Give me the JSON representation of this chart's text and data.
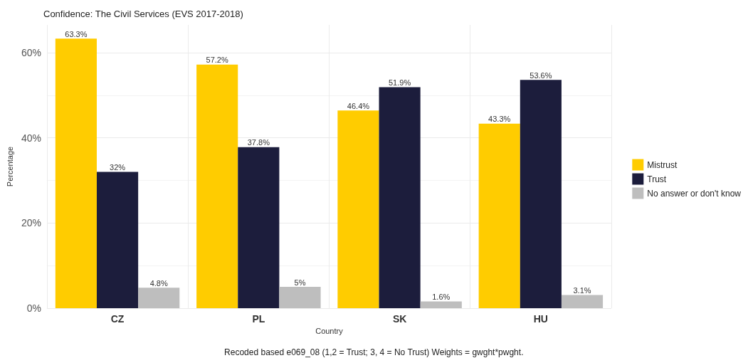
{
  "chart_data": {
    "type": "bar",
    "title": "Confidence: The Civil Services (EVS 2017-2018)",
    "xlabel": "Country",
    "ylabel": "Percentage",
    "annotations": [
      "Recoded based e069_08 (1,2 = Trust; 3, 4 = No Trust) Weights = gwght*pwght."
    ],
    "categories": [
      "CZ",
      "PL",
      "SK",
      "HU"
    ],
    "series": [
      {
        "name": "Mistrust",
        "color": "#ffcc00",
        "values": [
          63.3,
          57.2,
          46.4,
          43.3
        ],
        "value_labels": [
          "63.3%",
          "57.2%",
          "46.4%",
          "43.3%"
        ]
      },
      {
        "name": "Trust",
        "color": "#1c1d3c",
        "values": [
          32,
          37.8,
          51.9,
          53.6
        ],
        "value_labels": [
          "32%",
          "37.8%",
          "51.9%",
          "53.6%"
        ]
      },
      {
        "name": "No answer or don't know",
        "color": "#bebebe",
        "values": [
          4.8,
          5,
          1.6,
          3.1
        ],
        "value_labels": [
          "4.8%",
          "5%",
          "1.6%",
          "3.1%"
        ]
      }
    ],
    "ylim": [
      0,
      66.5
    ],
    "yticks": [
      {
        "value": 0,
        "label": "0%"
      },
      {
        "value": 20,
        "label": "20%"
      },
      {
        "value": 40,
        "label": "40%"
      },
      {
        "value": 60,
        "label": "60%"
      }
    ],
    "grid": true,
    "legend": "right"
  }
}
